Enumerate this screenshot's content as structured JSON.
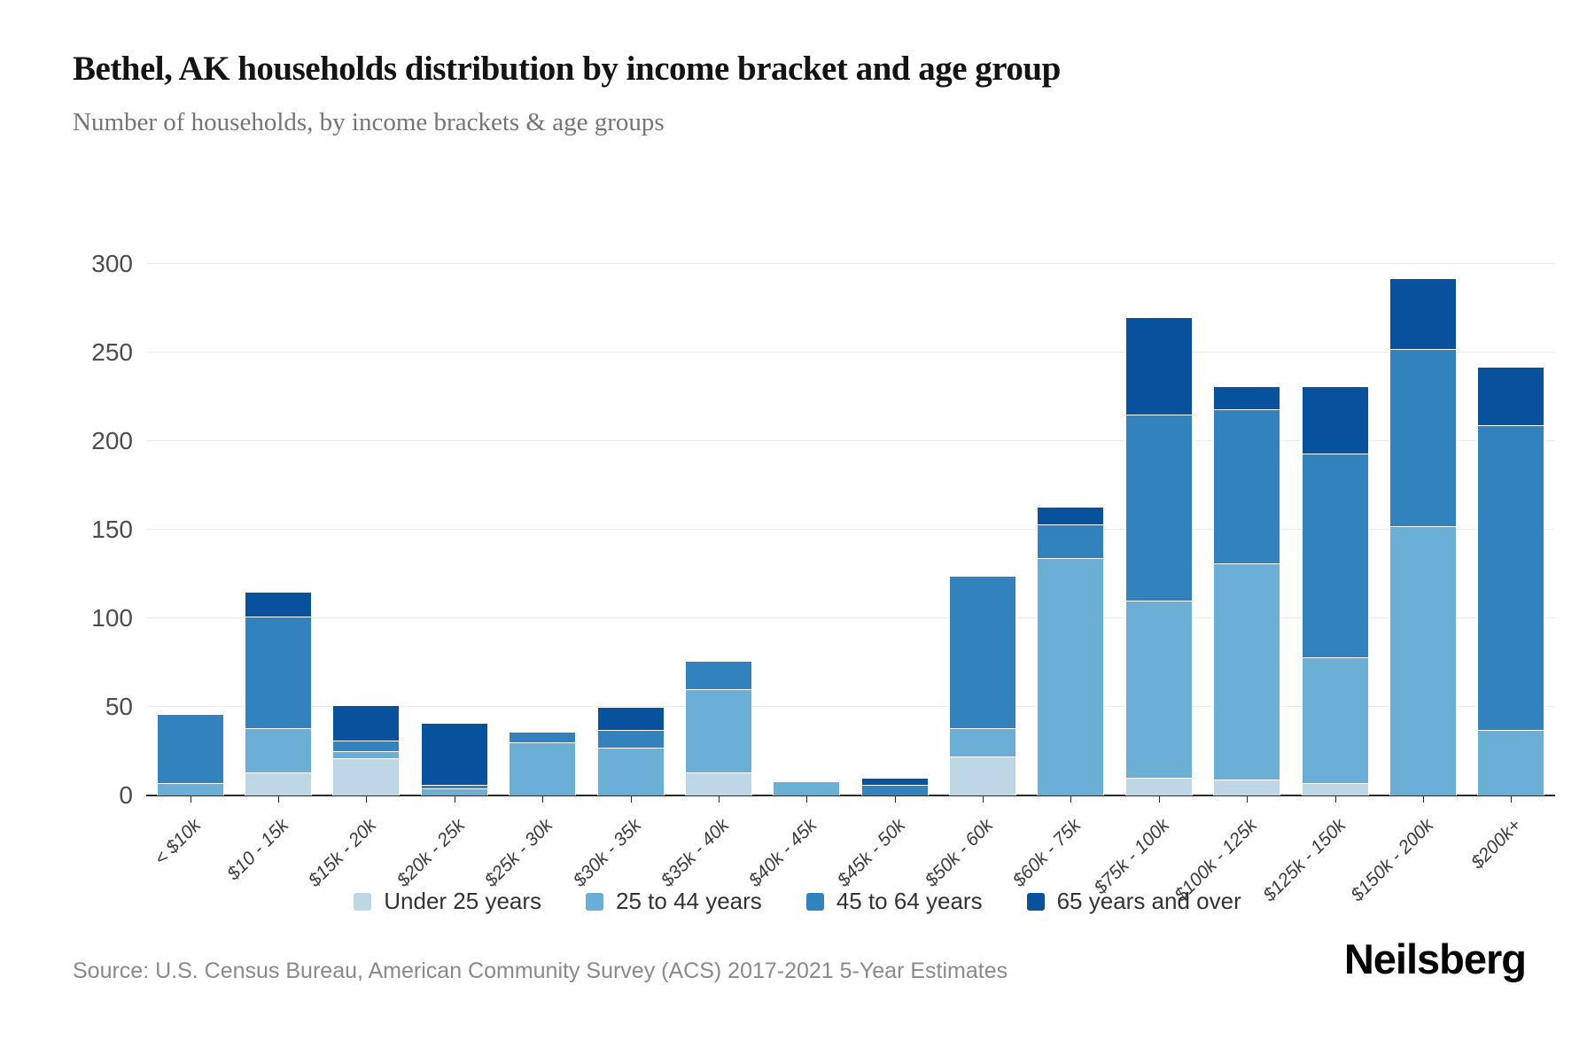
{
  "header": {
    "title": "Bethel, AK households distribution by income bracket and age group",
    "subtitle": "Number of households, by income brackets & age groups"
  },
  "source": {
    "label": "Source: U.S. Census Bureau, American Community Survey (ACS) 2017-2021 5-Year Estimates"
  },
  "brand": {
    "logo_text": "Neilsberg"
  },
  "chart_data": {
    "type": "bar",
    "stacked": true,
    "title": "Bethel, AK households distribution by income bracket and age group",
    "xlabel": "",
    "ylabel": "Number of households",
    "ylim": [
      0,
      300
    ],
    "yticks": [
      0,
      50,
      100,
      150,
      200,
      250,
      300
    ],
    "grid": "horizontal",
    "legend_position": "bottom",
    "categories": [
      "< $10k",
      "$10 - 15k",
      "$15k - 20k",
      "$20k - 25k",
      "$25k - 30k",
      "$30k - 35k",
      "$35k - 40k",
      "$40k - 45k",
      "$45k - 50k",
      "$50k - 60k",
      "$60k - 75k",
      "$75k - 100k",
      "$100k - 125k",
      "$125k - 150k",
      "$150k - 200k",
      "$200k+"
    ],
    "series": [
      {
        "name": "Under 25 years",
        "color": "#bdd7e7",
        "values": [
          0,
          13,
          21,
          0,
          0,
          0,
          13,
          0,
          0,
          22,
          0,
          10,
          9,
          7,
          0,
          0
        ]
      },
      {
        "name": "25 to 44 years",
        "color": "#6baed6",
        "values": [
          7,
          25,
          4,
          4,
          30,
          27,
          47,
          8,
          0,
          16,
          134,
          100,
          122,
          71,
          152,
          37
        ]
      },
      {
        "name": "45 to 64 years",
        "color": "#3182bd",
        "values": [
          39,
          63,
          6,
          2,
          6,
          10,
          16,
          0,
          6,
          86,
          19,
          105,
          87,
          115,
          100,
          172
        ]
      },
      {
        "name": "65 years and over",
        "color": "#08519c",
        "values": [
          0,
          14,
          20,
          35,
          0,
          13,
          0,
          0,
          4,
          0,
          10,
          55,
          13,
          38,
          40,
          33
        ]
      }
    ]
  }
}
